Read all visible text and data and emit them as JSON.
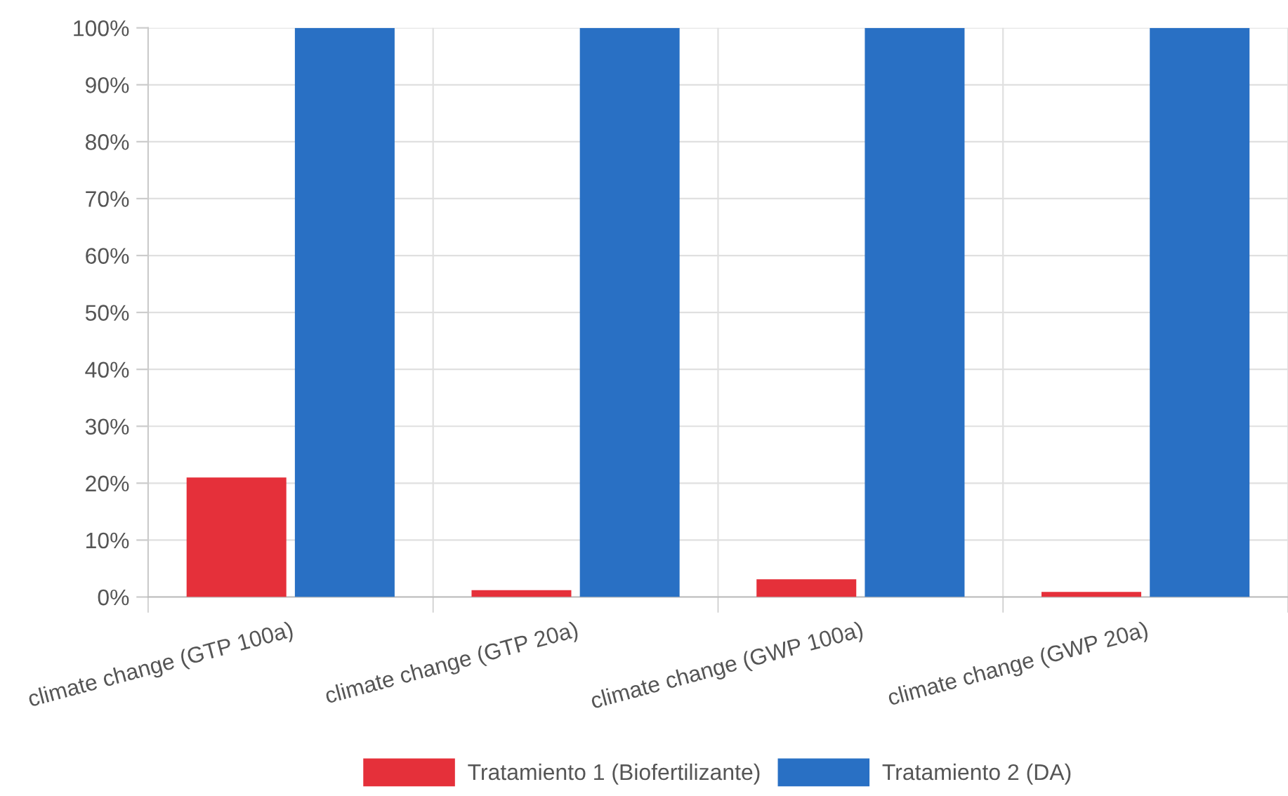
{
  "chart_data": {
    "type": "bar",
    "categories": [
      "climate change (GTP 100a)",
      "climate change (GTP 20a)",
      "climate change (GWP 100a)",
      "climate change (GWP 20a)"
    ],
    "series": [
      {
        "name": "Tratamiento 1 (Biofertilizante)",
        "color": "#e5303a",
        "values": [
          21,
          1.2,
          3.1,
          0.9
        ]
      },
      {
        "name": "Tratamiento 2 (DA)",
        "color": "#2970c4",
        "values": [
          100,
          100,
          100,
          100
        ]
      }
    ],
    "ylim": [
      0,
      100
    ],
    "yticks": [
      {
        "value": 0,
        "label": "0%"
      },
      {
        "value": 10,
        "label": "10%"
      },
      {
        "value": 20,
        "label": "20%"
      },
      {
        "value": 30,
        "label": "30%"
      },
      {
        "value": 40,
        "label": "40%"
      },
      {
        "value": 50,
        "label": "50%"
      },
      {
        "value": 60,
        "label": "60%"
      },
      {
        "value": 70,
        "label": "70%"
      },
      {
        "value": 80,
        "label": "80%"
      },
      {
        "value": 90,
        "label": "90%"
      },
      {
        "value": 100,
        "label": "100%"
      }
    ],
    "grid": true,
    "legend": "bottom"
  }
}
